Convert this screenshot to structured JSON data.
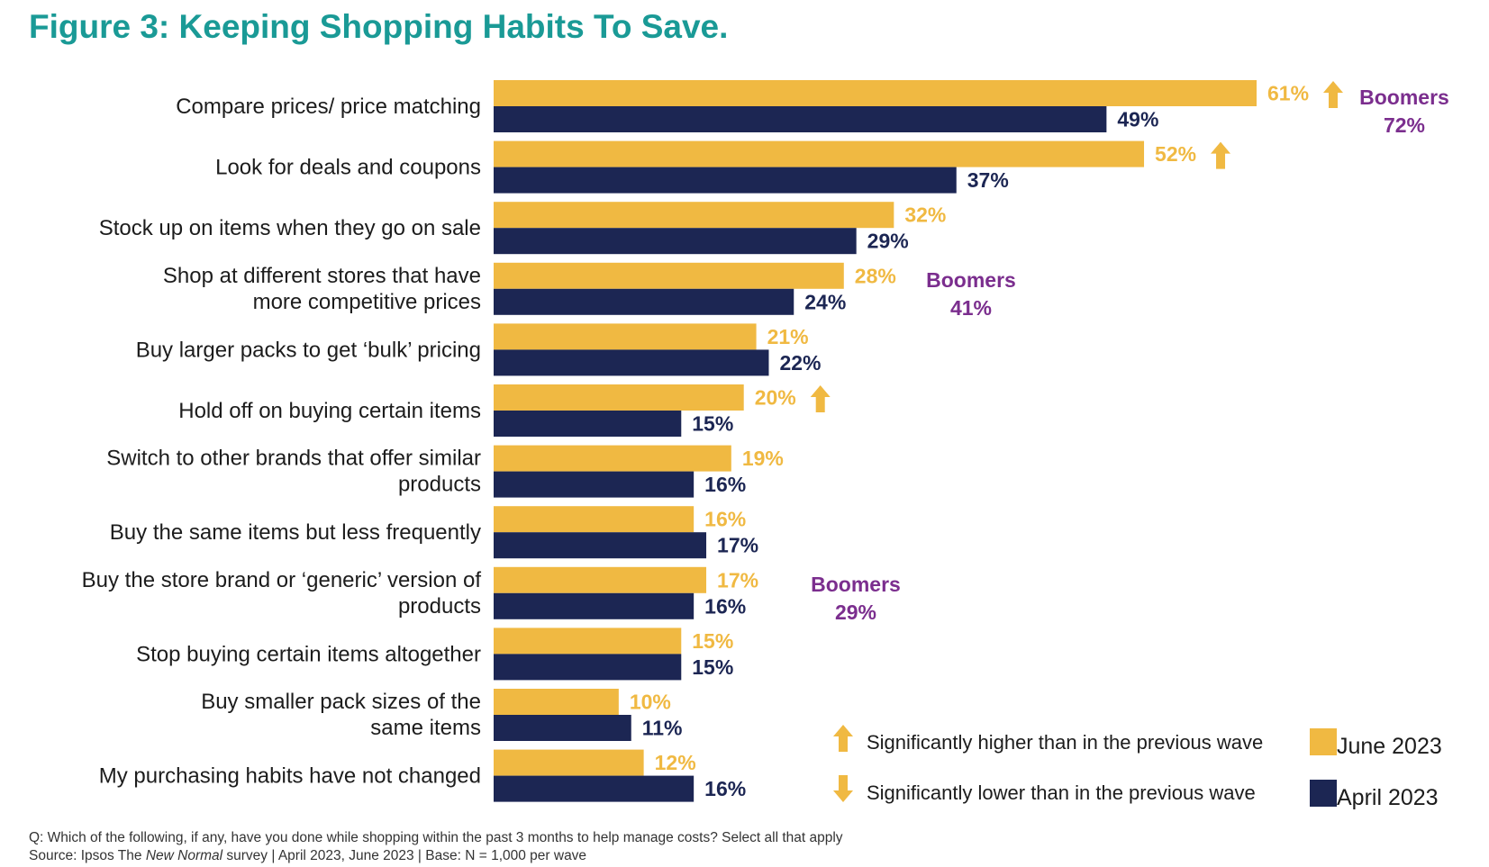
{
  "title": "Figure 3: Keeping Shopping Habits To Save.",
  "colors": {
    "title": "#1a9a96",
    "june": "#f0b942",
    "april": "#1c2653",
    "boomers": "#7b2e8e",
    "arrow": "#f0b942"
  },
  "chart_data": {
    "type": "bar",
    "orientation": "horizontal",
    "title": "Figure 3: Keeping Shopping Habits To Save.",
    "xlim": [
      0,
      61
    ],
    "categories": [
      [
        "Compare prices/ price matching"
      ],
      [
        "Look for deals and coupons"
      ],
      [
        "Stock up on items when they go on sale"
      ],
      [
        "Shop at different stores that have",
        "more competitive prices"
      ],
      [
        "Buy larger packs to get ‘bulk’ pricing"
      ],
      [
        "Hold off on buying certain items"
      ],
      [
        "Switch to other brands that offer similar",
        "products"
      ],
      [
        "Buy the same items but less frequently"
      ],
      [
        "Buy the store brand or ‘generic’ version of",
        "products"
      ],
      [
        "Stop buying certain items altogether"
      ],
      [
        "Buy smaller pack sizes of the",
        "same items"
      ],
      [
        "My purchasing habits have not changed"
      ]
    ],
    "series": [
      {
        "name": "June 2023",
        "key": "june",
        "values": [
          61,
          52,
          32,
          28,
          21,
          20,
          19,
          16,
          17,
          15,
          10,
          12
        ]
      },
      {
        "name": "April 2023",
        "key": "april",
        "values": [
          49,
          37,
          29,
          24,
          22,
          15,
          16,
          17,
          16,
          15,
          11,
          16
        ]
      }
    ],
    "value_suffix": "%",
    "significance": {
      "higher": [
        0,
        1,
        5
      ],
      "lower": []
    },
    "annotations": [
      {
        "category_index": 0,
        "label": "Boomers",
        "value": "72%"
      },
      {
        "category_index": 3,
        "label": "Boomers",
        "value": "41%"
      },
      {
        "category_index": 8,
        "label": "Boomers",
        "value": "29%"
      }
    ]
  },
  "legend": {
    "higher": "Significantly higher than in the previous wave",
    "lower": "Significantly lower than in the previous wave",
    "june": "June 2023",
    "april": "April 2023"
  },
  "footnote": {
    "question": "Q: Which of the following, if any, have you done while shopping within the past 3 months to help manage costs? Select all that apply",
    "source_prefix": "Source: Ipsos The ",
    "source_italic": "New Normal",
    "source_suffix": " survey | April 2023, June 2023 | Base: N = 1,000 per wave"
  }
}
